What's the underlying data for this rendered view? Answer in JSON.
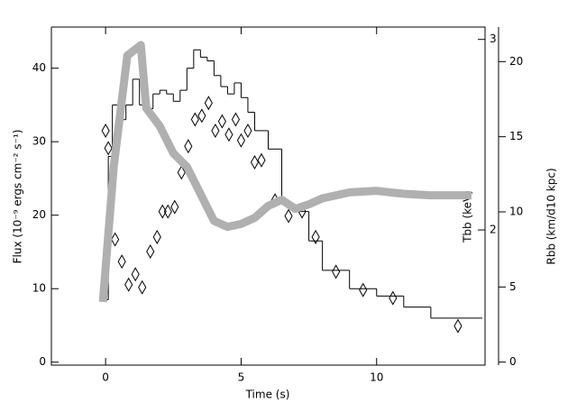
{
  "chart_data": {
    "type": "combo",
    "xlabel": "Time (s)",
    "ylabel": "Flux (10⁻⁹ ergs cm⁻² s⁻¹)",
    "y2label": "Tbb (keV)",
    "y3label": "Rbb (km/d10 kpc)",
    "xlim": [
      -2,
      14
    ],
    "xticks": [
      0,
      5,
      10
    ],
    "ylim": [
      -0.4,
      45.6
    ],
    "yticks": [
      0,
      10,
      20,
      30,
      40
    ],
    "y2lim": [
      1.5,
      3.08
    ],
    "y2ticks": [
      2,
      3
    ],
    "y2log": true,
    "y3lim": [
      -0.2,
      22.3
    ],
    "y3ticks": [
      0,
      5,
      10,
      15,
      20
    ],
    "series": [
      {
        "type": "step",
        "color": "#000000",
        "bins": [
          -0.1,
          0.1,
          0.25,
          0.5,
          0.75,
          1.0,
          1.25,
          1.5,
          1.75,
          2.0,
          2.25,
          2.5,
          2.75,
          3.0,
          3.25,
          3.5,
          3.75,
          4.0,
          4.25,
          4.5,
          4.75,
          5.0,
          5.25,
          5.5,
          6.0,
          6.5,
          7.0,
          7.5,
          8.0,
          9.0,
          10.0,
          11.0,
          12.0,
          13.9
        ],
        "values": [
          8.5,
          28,
          35,
          33,
          35,
          38.5,
          35,
          34.5,
          36.5,
          37,
          36.5,
          35.5,
          37,
          40,
          42.5,
          41.5,
          41,
          39,
          37.5,
          36.5,
          38,
          36,
          34,
          31.5,
          29,
          21.5,
          20.5,
          16.5,
          12.5,
          10,
          9,
          7.5,
          6
        ]
      },
      {
        "type": "scatter",
        "axis": "y2",
        "color": "#000000",
        "x": [
          0,
          0.1,
          0.35,
          0.6,
          0.85,
          1.1,
          1.35,
          1.65,
          1.9,
          2.1,
          2.3,
          2.55,
          2.8,
          3.05,
          3.3,
          3.55,
          3.8,
          4.05,
          4.3,
          4.55,
          4.8,
          5.0,
          5.25,
          5.5,
          5.75,
          6.25,
          6.75,
          7.25,
          7.75,
          8.5,
          9.5,
          10.6,
          13.0
        ],
        "values": [
          2.47,
          2.38,
          1.96,
          1.87,
          1.78,
          1.82,
          1.77,
          1.91,
          1.97,
          2.08,
          2.08,
          2.1,
          2.26,
          2.39,
          2.53,
          2.55,
          2.62,
          2.47,
          2.52,
          2.45,
          2.53,
          2.42,
          2.47,
          2.31,
          2.32,
          2.13,
          2.06,
          2.08,
          1.97,
          1.83,
          1.76,
          1.73,
          1.63
        ]
      },
      {
        "type": "band",
        "axis": "y3",
        "color": "#b0b0b0",
        "x": [
          -0.1,
          0.3,
          0.8,
          1.3,
          1.5,
          2.0,
          2.5,
          3.0,
          3.5,
          4.0,
          4.5,
          5.0,
          5.5,
          6.0,
          6.5,
          7.0,
          7.5,
          8.0,
          9.0,
          10.0,
          11.0,
          12.0,
          13.5
        ],
        "values": [
          4.0,
          13.0,
          20.4,
          21.1,
          16.9,
          15.7,
          13.9,
          13.0,
          11.2,
          9.4,
          9.0,
          9.2,
          9.6,
          10.4,
          10.8,
          10.2,
          10.5,
          10.9,
          11.3,
          11.4,
          11.2,
          11.1,
          11.1
        ]
      }
    ]
  }
}
